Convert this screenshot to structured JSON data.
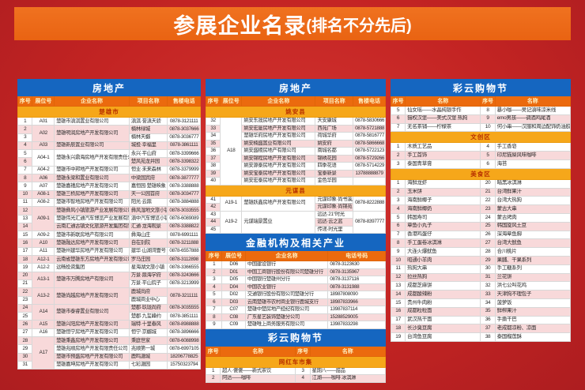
{
  "banner": {
    "title": "参展企业名录",
    "suffix": "(排名不分先后)"
  },
  "colors": {
    "page_background": "#c32423",
    "banner_orange": "#ec6a16",
    "section_blue": "#1566c0",
    "column_header_orange": "#eb6a0e",
    "region_gold": "#f6a71a",
    "row_pink": "#f8d9da"
  },
  "tables": [
    {
      "id": "realestate-table-left",
      "cls": "t-left",
      "title": "房地产",
      "columns": [
        {
          "label": "序号",
          "w": "8%",
          "al": "c"
        },
        {
          "label": "展位号",
          "w": "12%",
          "al": "c"
        },
        {
          "label": "企业名称",
          "w": "41%",
          "al": "l"
        },
        {
          "label": "项目名称",
          "w": "21%",
          "al": "l"
        },
        {
          "label": "售楼电话",
          "w": "18%",
          "al": "c"
        }
      ],
      "sections": [
        {
          "region": "楚雄市",
          "rows": [
            [
              "1",
              "A01",
              "楚雄市滇淇置业有限公司",
              "滇淇·誉滇天骄",
              "0878-3121111"
            ],
            [
              "2",
              {
                "t": "A02",
                "rs": 2
              },
              {
                "t": "楚雄明润房地产开发有限公司",
                "rs": 2
              },
              "楠林绿城",
              "0878-3037666"
            ],
            [
              "3",
              "楠林天樾",
              "0878-3036777"
            ],
            [
              "4",
              "A03",
              "楚雄新辰置业有限公司",
              "城投·幸福里",
              "0878-3861111"
            ],
            [
              "5",
              {
                "t": "A04-1",
                "rs": 2
              },
              {
                "t": "楚雄永兴鼎海房地产开发有限责任公司",
                "rs": 2
              },
              "永兴·平山府",
              "0878-3399666"
            ],
            [
              "6",
              "楚风苑龙井园",
              "0878-3398322"
            ],
            [
              "7",
              "A04-2",
              "楚雄市中邦地产开发有限公司",
              "恒业·未来森林",
              "0878-3379999"
            ],
            [
              "8",
              "A06",
              "楚雄永梁和置业有限公司",
              "中梁国宾府",
              "0878-3877777"
            ],
            [
              "9",
              "A07",
              "楚雄嘉禧房地产开发有限公司",
              "嘉恒园·楚雄映象",
              "0878-3388888"
            ],
            [
              "10",
              "A08-1",
              "楚雄三桥房地产开发有限公司",
              "天一公园首府",
              "0878-3034777"
            ],
            [
              "11",
              "A08-2",
              "楚雄市智地房地产开发有限公司",
              "阳光·云鼎",
              "0878-3884888"
            ],
            [
              "12",
              {
                "t": "A09-1",
                "rs": 3
              },
              "楚雄彝风小镇旅游产业发展有限公司",
              "彝风湿地文旅小镇",
              "0878-3033555"
            ],
            [
              "13",
              "楚雄伟光汇通汽车博览产业发展有限公司",
              "滇中汽车博览小镇",
              "0878-6089089"
            ],
            [
              "14",
              "云南汇通古镇文化旅游开发集团有限公司",
              "汇通·龙海观景",
              "0878-3388822"
            ],
            [
              "15",
              "A09-2",
              "楚雄市新联房地产有限公司",
              "彝海山庄",
              "0878-6991111"
            ],
            [
              "16",
              "A10",
              "楚雄融达房地产开发有限公司",
              "自在别院",
              "0878-3211888"
            ],
            [
              "17",
              "A11",
              "楚雄州建华房地产开发有限公司",
              "建华·山湖湾壹号",
              "0878-6557888"
            ],
            [
              "18",
              "A12-1",
              "云南省楚雄东方房地产开发有限公司",
              "罗马庄园",
              "0878-3112898"
            ],
            [
              "19",
              "A12-2",
              "远畅投资集团",
              "星海湖文旅小镇",
              "0878-3366555"
            ],
            [
              "20",
              {
                "t": "A13-1",
                "rs": 2
              },
              {
                "t": "楚雄市万腾房地产有限公司",
                "rs": 2
              },
              "万景·鼎海学府",
              "0878-3243666"
            ],
            [
              "21",
              "万景·平山院子",
              "0878-3213999"
            ],
            [
              "22",
              {
                "t": "A13-2",
                "rs": 2
              },
              {
                "t": "楚雄尚越房地产开发有限公司",
                "rs": 2
              },
              "鹿城尚府",
              {
                "t": "0878-3211111",
                "rs": 2
              }
            ],
            [
              "23",
              "鹿城商业中心"
            ],
            [
              "24",
              {
                "t": "A14",
                "rs": 2
              },
              {
                "t": "楚雄市泰睿置业有限公司",
                "rs": 2
              },
              "楚郡·玖珑尚府",
              "0878-3035555"
            ],
            [
              "25",
              "楚郡·九玺峰约",
              "0878-3851111"
            ],
            [
              "26",
              "A15",
              "楚雄兴阳房地产开发有限公司",
              "瑞特·十里春风",
              "0878-8988888"
            ],
            [
              "27",
              "A16",
              "楚雄恒宁房地产开发有限公司",
              "恒宁·京樾城",
              "0878-3896666"
            ],
            [
              "28",
              {
                "t": "A17",
                "rs": 4
              },
              "楚雄秉鑫房地产开发有限公司",
              "秉庭世家",
              "0878-6088998"
            ],
            [
              "29",
              "楚雄兆顺房地产开发有限责任公司",
              "兆顺第一城",
              "0878-6997105"
            ],
            [
              "30",
              "楚雄市预盛房地产开发有限公司",
              "鹿鸣溏城",
              "18206778825"
            ],
            [
              "31",
              "楚雄嘉坤房地产开发有限公司",
              "七彩溏园",
              "15750323794"
            ]
          ]
        }
      ]
    },
    {
      "id": "realestate-table-mid",
      "cls": "t-midre",
      "title": "房地产",
      "columns": [
        {
          "label": "序号",
          "w": "8%",
          "al": "c"
        },
        {
          "label": "展位号",
          "w": "12%",
          "al": "c"
        },
        {
          "label": "企业名称",
          "w": "41%",
          "al": "l"
        },
        {
          "label": "项目名称",
          "w": "21%",
          "al": "l"
        },
        {
          "label": "售楼电话",
          "w": "18%",
          "al": "c"
        }
      ],
      "sections": [
        {
          "region": "姚安县",
          "rows": [
            [
              "32",
              {
                "t": "A18",
                "rs": 9
              },
              "姚安东晟房地产开发有限公司",
              "天安康城",
              "0878-5830666"
            ],
            [
              "33",
              "姚安宏厦房地产开发有限公司",
              "西苑广场",
              "0878-5721888"
            ],
            [
              "34",
              "楚雄华府房地产开发有限公司",
              "荷城华府",
              "0878-5816777"
            ],
            [
              "35",
              "姚安楠盛置业有限公司",
              "姚安府",
              "0878-5866668"
            ],
            [
              "36",
              "姚安盛稷房地产有限公司",
              "南城名都",
              "0878-5722123"
            ],
            [
              "37",
              "姚安锦程房地产开发有限公司",
              "锦绣花园",
              "0878-5729266"
            ],
            [
              "38",
              "姚安源泰房地产开发有限公司",
              "四季花语",
              "0878-5714229"
            ],
            [
              "39",
              "姚安宝泰房地产开发有限公司",
              "宝泰新景",
              "13788888879"
            ],
            [
              "40",
              "姚安宏泰房地产开发有限公司",
              "金色华园",
              ""
            ]
          ]
        },
        {
          "region": "元谋县",
          "rows": [
            [
              "41",
              {
                "t": "A19-1",
                "rs": 2
              },
              {
                "t": "楚雄跃鑫房地产开发有限公司",
                "rs": 2
              },
              "元谋印象·尚书溪岸",
              {
                "t": "0878-8222888",
                "rs": 2
              }
            ],
            [
              "42",
              "元谋印象·尚锦苑"
            ],
            [
              "43",
              {
                "t": "A19-2",
                "rs": 3
              },
              {
                "t": "元谋瑞景置业",
                "rs": 3
              },
              "远达·21°时光",
              {
                "t": "0878-8397777",
                "rs": 3
              }
            ],
            [
              "44",
              "远达·云之蓝"
            ],
            [
              "45",
              "传递·时光里"
            ]
          ]
        }
      ]
    },
    {
      "id": "finance-table",
      "cls": "t-fin",
      "title": "金融机构及相关产业",
      "columns": [
        {
          "label": "序号",
          "w": "9%",
          "al": "c"
        },
        {
          "label": "展位号",
          "w": "13%",
          "al": "c"
        },
        {
          "label": "企业名称",
          "w": "46%",
          "al": "l"
        },
        {
          "label": "电话号码",
          "w": "32%",
          "al": "l"
        }
      ],
      "sections": [
        {
          "rows": [
            [
              "1",
              "D06",
              "中国建设银行",
              "0878-3123630"
            ],
            [
              "2",
              "D01",
              "中国工商银行股份有限公司楚雄分行",
              "0878-3135967"
            ],
            [
              "3",
              "D05",
              "中国银行楚雄州分行",
              "0878-3137116"
            ],
            [
              "4",
              "D04",
              "中国农业银行",
              "0878-3131988"
            ],
            [
              "5",
              "D02",
              "交通银行股份有限公司楚雄分行",
              "18987808090"
            ],
            [
              "6",
              "D03",
              "云南楚雄市农村商业银行鹿城支行",
              "18987833966"
            ],
            [
              "7",
              "C07",
              "楚雄中楚房地产经纪有限公司",
              "13987837114"
            ],
            [
              "8",
              "C08",
              "广东星艺装饰楚雄分公司",
              "15288529005"
            ],
            [
              "9",
              "C09",
              "楚雄唯上商务服务有限公司",
              "13987833298"
            ]
          ]
        }
      ]
    },
    {
      "id": "shopping-table-mid",
      "cls": "t-shop",
      "title": "彩云购物节",
      "columns": [
        {
          "label": "序号",
          "w": "8%",
          "al": "c"
        },
        {
          "label": "名称",
          "w": "42%",
          "al": "l"
        },
        {
          "label": "序号",
          "w": "8%",
          "al": "c"
        },
        {
          "label": "名称",
          "w": "42%",
          "al": "l"
        }
      ],
      "sections": [
        {
          "region": "网红车市集",
          "rows": [
            [
              "1",
              "超人·傻傻——新式茶饮",
              "3",
              "星期八——甜品"
            ],
            [
              "2",
              "阿达——咖啡",
              "4",
              "江湖——咖啡 冰淇淋"
            ]
          ]
        }
      ]
    },
    {
      "id": "shopping-table-right",
      "cls": "t-right",
      "title": "彩云购物节",
      "columns": [
        {
          "label": "序号",
          "w": "8%",
          "al": "c"
        },
        {
          "label": "名称",
          "w": "42%",
          "al": "l"
        },
        {
          "label": "序号",
          "w": "8%",
          "al": "c"
        },
        {
          "label": "名称",
          "w": "42%",
          "al": "l"
        }
      ],
      "sections": [
        {
          "rows": [
            [
              "5",
              "仙女瑶——水晶纯银手作",
              "8",
              "暴小咖——吴记滇味凉米线"
            ],
            [
              "6",
              "猫权汉堡——美式汉堡 热狗",
              "9",
              "emo男孩——调酒鸡尾酒"
            ],
            [
              "7",
              "无名茶铺——柠檬茶",
              "10",
              "何小串——汉服和周边配饰奶油胶"
            ]
          ]
        },
        {
          "region": "文创区",
          "rows": [
            [
              "1",
              "木质工艺品",
              "4",
              "手工香皂"
            ],
            [
              "2",
              "手工首饰",
              "5",
              "印尼猫屎风味咖啡"
            ],
            [
              "3",
              "泰国青草膏",
              "6",
              "海苔"
            ]
          ]
        },
        {
          "region": "美食区",
          "rows": [
            [
              "1",
              "海鲜龙虾",
              "20",
              "暗黑冰淇淋"
            ],
            [
              "2",
              "玉米饼",
              "21",
              "台湾鲜果汁"
            ],
            [
              "3",
              "海南鲜椰子",
              "22",
              "台湾大热狗"
            ],
            [
              "4",
              "海南鲜椰奶",
              "23",
              "蒙古大串"
            ],
            [
              "5",
              "韩国寿司",
              "24",
              "蒙古烤肉"
            ],
            [
              "6",
              "章鱼小丸子",
              "25",
              "韩国旋风土豆"
            ],
            [
              "7",
              "香港鸡蛋仔",
              "26",
              "深海章鱼脚"
            ],
            [
              "8",
              "手工蛋卷冰淇淋",
              "27",
              "台湾大鱿鱼"
            ],
            [
              "9",
              "大连火爆鱿鱼",
              "28",
              "合川桃片"
            ],
            [
              "10",
              "昭通小羊肉",
              "29",
              "果脯、干果系列"
            ],
            [
              "11",
              "热狗大串",
              "30",
              "手工糖系列"
            ],
            [
              "12",
              "拉丝热狗",
              "31",
              "兰花饼"
            ],
            [
              "13",
              "成都芝麻饼",
              "32",
              "洪七公叫花鸡"
            ],
            [
              "14",
              "成都酸辣粉",
              "33",
              "天津狗不理包子"
            ],
            [
              "15",
              "贵州牛肉粉",
              "34",
              "菠萝饭"
            ],
            [
              "16",
              "成都粒粒面",
              "35",
              "鲜榨果汁"
            ],
            [
              "17",
              "武汉热干面",
              "36",
              "手撕干巴"
            ],
            [
              "18",
              "长沙臭豆腐",
              "37",
              "老成都凉粉、凉面"
            ],
            [
              "19",
              "台湾鱼豆腐",
              "38",
              "泰国榴莲酥"
            ]
          ]
        }
      ]
    }
  ]
}
